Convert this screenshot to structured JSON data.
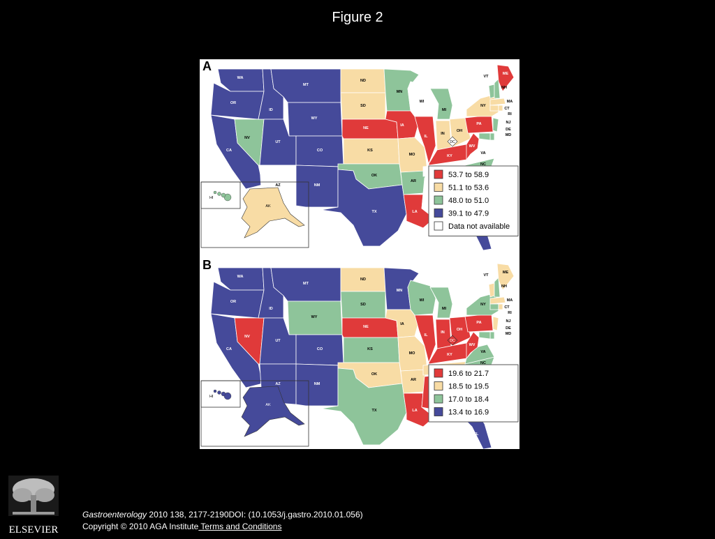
{
  "slide": {
    "title": "Figure 2"
  },
  "colors": {
    "red": "#e03a3a",
    "tan": "#f8dca5",
    "green": "#8ec49a",
    "blue": "#454a9a",
    "none": "#ffffff"
  },
  "panels": [
    {
      "label": "A",
      "legend": [
        {
          "label": "53.7 to 58.9",
          "color": "red"
        },
        {
          "label": "51.1 to 53.6",
          "color": "tan"
        },
        {
          "label": "48.0 to 51.0",
          "color": "green"
        },
        {
          "label": "39.1 to 47.9",
          "color": "blue"
        },
        {
          "label": "Data not available",
          "color": "none"
        }
      ],
      "states": {
        "WA": "blue",
        "OR": "blue",
        "CA": "blue",
        "ID": "blue",
        "NV": "green",
        "MT": "blue",
        "WY": "blue",
        "UT": "blue",
        "AZ": "none",
        "CO": "blue",
        "NM": "blue",
        "ND": "tan",
        "SD": "tan",
        "NE": "red",
        "KS": "tan",
        "OK": "green",
        "TX": "blue",
        "MN": "green",
        "IA": "red",
        "MO": "tan",
        "AR": "green",
        "LA": "red",
        "WI": "none",
        "IL": "red",
        "MI": "green",
        "IN": "tan",
        "OH": "tan",
        "KY": "red",
        "TN": "none",
        "MS": "none",
        "AL": "green",
        "GA": "green",
        "FL": "blue",
        "SC": "tan",
        "NC": "green",
        "VA": "none",
        "WV": "red",
        "PA": "red",
        "NY": "tan",
        "VT": "green",
        "NH": "green",
        "ME": "red",
        "MA": "tan",
        "CT": "tan",
        "RI": "tan",
        "NJ": "green",
        "DE": "green",
        "MD": "green",
        "DC": "none",
        "AK": "tan",
        "HI": "green"
      }
    },
    {
      "label": "B",
      "legend": [
        {
          "label": "19.6 to 21.7",
          "color": "red"
        },
        {
          "label": "18.5 to 19.5",
          "color": "tan"
        },
        {
          "label": "17.0 to 18.4",
          "color": "green"
        },
        {
          "label": "13.4 to 16.9",
          "color": "blue"
        }
      ],
      "states": {
        "WA": "blue",
        "OR": "blue",
        "CA": "blue",
        "ID": "blue",
        "NV": "red",
        "MT": "blue",
        "WY": "green",
        "UT": "blue",
        "AZ": "blue",
        "CO": "blue",
        "NM": "blue",
        "ND": "tan",
        "SD": "green",
        "NE": "red",
        "KS": "green",
        "OK": "tan",
        "TX": "green",
        "MN": "blue",
        "IA": "tan",
        "MO": "tan",
        "AR": "tan",
        "LA": "red",
        "WI": "green",
        "IL": "red",
        "MI": "green",
        "IN": "red",
        "OH": "red",
        "KY": "red",
        "TN": "tan",
        "MS": "red",
        "AL": "tan",
        "GA": "green",
        "FL": "blue",
        "SC": "tan",
        "NC": "green",
        "VA": "green",
        "WV": "red",
        "PA": "red",
        "NY": "green",
        "VT": "tan",
        "NH": "green",
        "ME": "tan",
        "MA": "tan",
        "CT": "green",
        "RI": "tan",
        "NJ": "tan",
        "DE": "green",
        "MD": "green",
        "DC": "red",
        "AK": "blue",
        "HI": "blue"
      }
    }
  ],
  "citation": {
    "journal": "Gastroenterology",
    "details": " 2010 138, 2177-2190DOI: (10.1053/j.gastro.2010.01.056)"
  },
  "copyright": {
    "text": "Copyright © 2010 AGA Institute",
    "link": " Terms and Conditions"
  },
  "logo": {
    "text": "ELSEVIER"
  }
}
